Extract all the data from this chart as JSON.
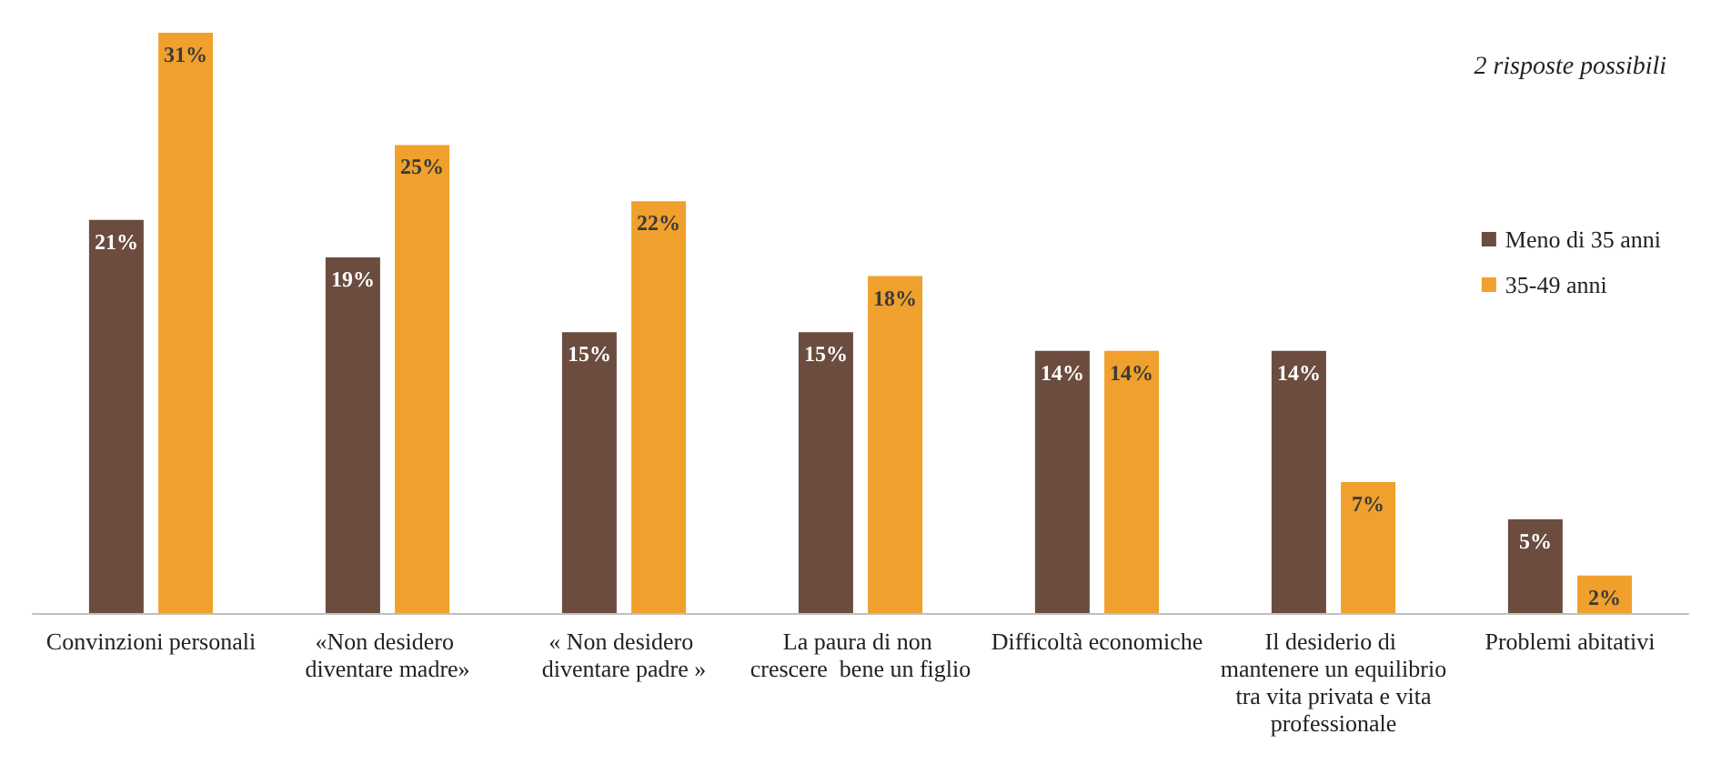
{
  "chart_data": {
    "type": "bar",
    "annotations": [
      "2 risposte possibili"
    ],
    "categories": [
      "Convinzioni personali",
      "«Non desidero diventare madre»",
      "« Non desidero diventare padre »",
      "La paura di non crescere  bene un figlio",
      "Difficoltà economiche",
      "Il desiderio di mantenere un equilibrio tra vita privata e vita professionale",
      "Problemi abitativi"
    ],
    "series": [
      {
        "name": "Meno di 35 anni",
        "color": "#6b4c3f",
        "values": [
          21,
          19,
          15,
          15,
          14,
          14,
          5
        ],
        "value_labels": [
          "21%",
          "19%",
          "15%",
          "15%",
          "14%",
          "14%",
          "5%"
        ]
      },
      {
        "name": "35-49 anni",
        "color": "#f0a02c",
        "values": [
          31,
          25,
          22,
          18,
          14,
          7,
          2
        ],
        "value_labels": [
          "31%",
          "25%",
          "22%",
          "18%",
          "14%",
          "7%",
          "2%"
        ]
      }
    ],
    "legend": "right"
  }
}
